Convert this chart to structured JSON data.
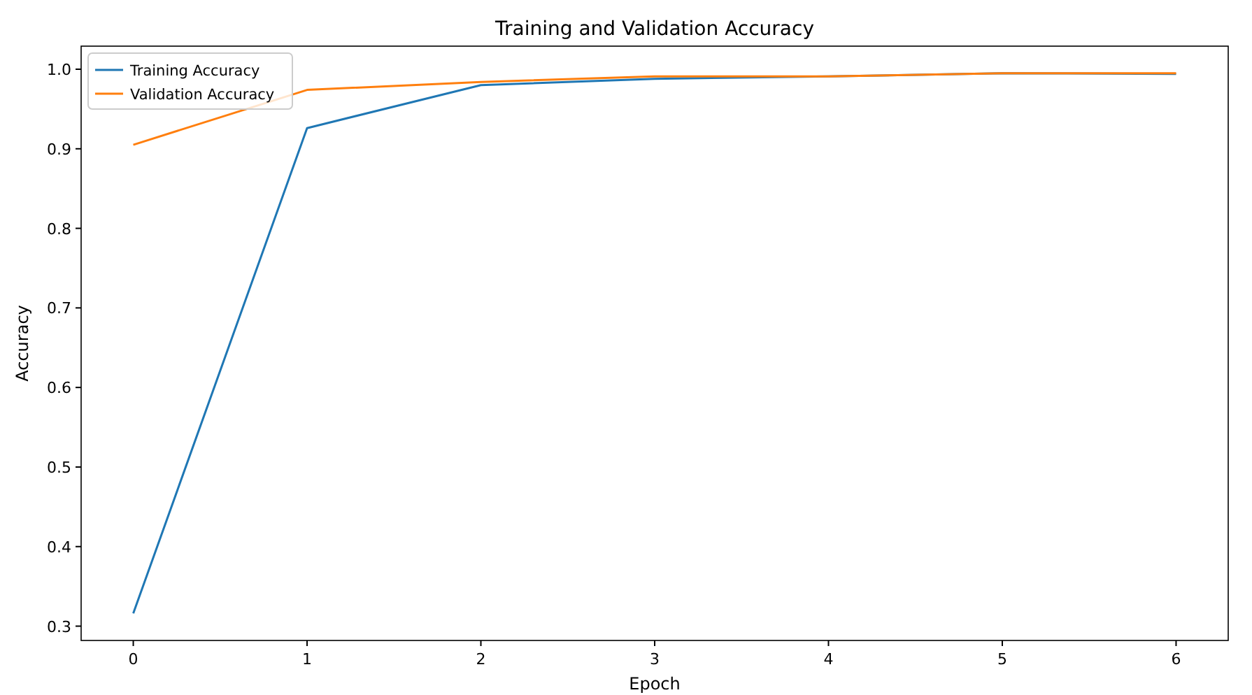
{
  "chart_data": {
    "type": "line",
    "title": "Training and Validation Accuracy",
    "xlabel": "Epoch",
    "ylabel": "Accuracy",
    "x": [
      0,
      1,
      2,
      3,
      4,
      5,
      6
    ],
    "series": [
      {
        "name": "Training Accuracy",
        "color": "#1f77b4",
        "values": [
          0.316,
          0.926,
          0.98,
          0.988,
          0.991,
          0.995,
          0.994
        ]
      },
      {
        "name": "Validation Accuracy",
        "color": "#ff7f0e",
        "values": [
          0.905,
          0.974,
          0.984,
          0.991,
          0.991,
          0.995,
          0.995
        ]
      }
    ],
    "xlim": [
      -0.3,
      6.3
    ],
    "ylim": [
      0.282,
      1.029
    ],
    "xticks": [
      0,
      1,
      2,
      3,
      4,
      5,
      6
    ],
    "yticks": [
      {
        "value": 0.3,
        "label": "0.3"
      },
      {
        "value": 0.4,
        "label": "0.4"
      },
      {
        "value": 0.5,
        "label": "0.5"
      },
      {
        "value": 0.6,
        "label": "0.6"
      },
      {
        "value": 0.7,
        "label": "0.7"
      },
      {
        "value": 0.8,
        "label": "0.8"
      },
      {
        "value": 0.9,
        "label": "0.9"
      },
      {
        "value": 1.0,
        "label": "1.0"
      }
    ],
    "grid": false,
    "legend": "top left",
    "marker": "none",
    "line_style": "solid"
  }
}
